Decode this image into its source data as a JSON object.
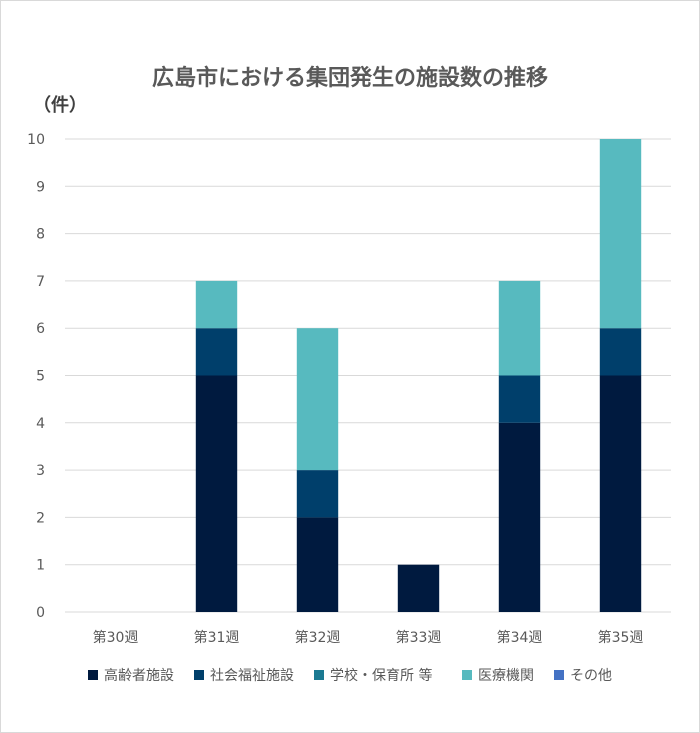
{
  "chart_data": {
    "type": "bar",
    "stacked": true,
    "title": "広島市における集団発生の施設数の推移",
    "unit_label": "（件）",
    "xlabel": "",
    "ylabel": "",
    "categories": [
      "第30週",
      "第31週",
      "第32週",
      "第33週",
      "第34週",
      "第35週"
    ],
    "ylim": [
      0,
      10
    ],
    "yticks": [
      "0",
      "1",
      "2",
      "3",
      "4",
      "5",
      "6",
      "7",
      "8",
      "9",
      "10"
    ],
    "grid": true,
    "legend_position": "bottom",
    "series": [
      {
        "name": "高齢者施設",
        "color": "#001a3f",
        "values": [
          0,
          5,
          2,
          1,
          4,
          5
        ]
      },
      {
        "name": "社会福祉施設",
        "color": "#003f6b",
        "values": [
          0,
          1,
          1,
          0,
          1,
          1
        ]
      },
      {
        "name": "学校・保育所 等",
        "color": "#1b7a92",
        "values": [
          0,
          0,
          0,
          0,
          0,
          0
        ]
      },
      {
        "name": "医療機関",
        "color": "#57babf",
        "values": [
          0,
          1,
          3,
          0,
          2,
          4
        ]
      },
      {
        "name": "その他",
        "color": "#4472c4",
        "values": [
          0,
          0,
          0,
          0,
          0,
          0
        ]
      }
    ]
  }
}
